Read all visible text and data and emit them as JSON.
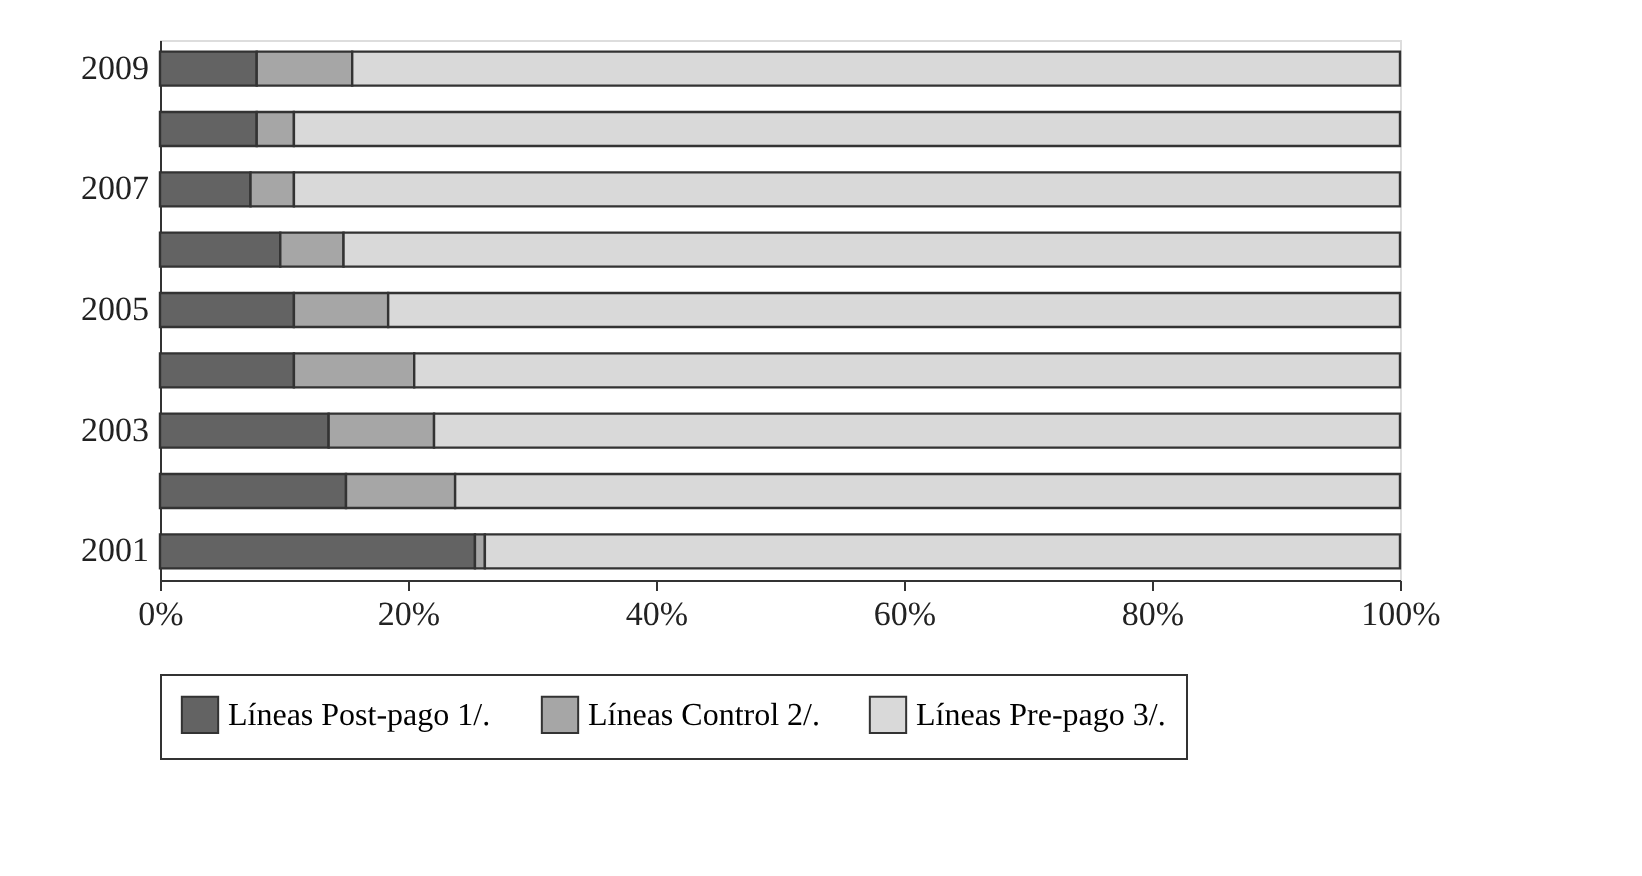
{
  "chart_data": {
    "type": "bar",
    "orientation": "horizontal",
    "stacked": true,
    "categories": [
      "2009",
      null,
      "2007",
      null,
      "2005",
      null,
      "2003",
      null,
      "2001"
    ],
    "series": [
      {
        "name": "Líneas Post-pago 1/.",
        "color": "#636363",
        "values": [
          7.8,
          7.8,
          7.3,
          9.7,
          10.8,
          10.8,
          13.6,
          15.0,
          25.4
        ]
      },
      {
        "name": "Líneas Control 2/.",
        "color": "#a6a6a6",
        "values": [
          7.7,
          3.0,
          3.5,
          5.1,
          7.6,
          9.7,
          8.5,
          8.8,
          0.8
        ]
      },
      {
        "name": "Líneas Pre-pago 3/.",
        "color": "#d9d9d9",
        "values": [
          84.5,
          89.2,
          89.2,
          85.2,
          81.6,
          79.5,
          77.9,
          76.2,
          73.8
        ]
      }
    ],
    "xlim": [
      0,
      100
    ],
    "xticks": [
      {
        "value": 0,
        "label": "0%"
      },
      {
        "value": 20,
        "label": "20%"
      },
      {
        "value": 40,
        "label": "40%"
      },
      {
        "value": 60,
        "label": "60%"
      },
      {
        "value": 80,
        "label": "80%"
      },
      {
        "value": 100,
        "label": "100%"
      }
    ],
    "grid": false,
    "legend": "bottom"
  }
}
